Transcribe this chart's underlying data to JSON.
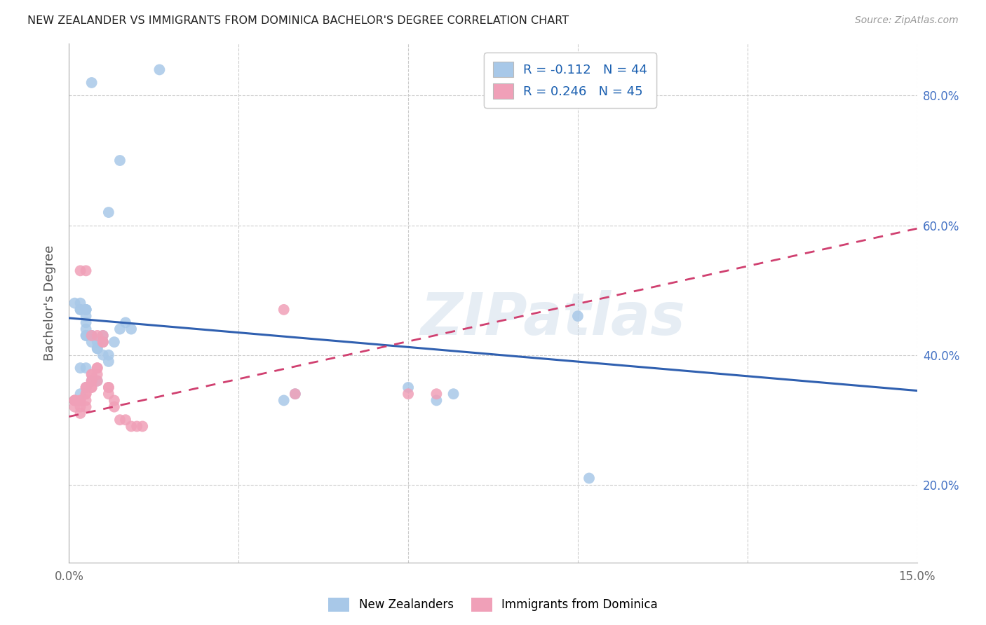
{
  "title": "NEW ZEALANDER VS IMMIGRANTS FROM DOMINICA BACHELOR'S DEGREE CORRELATION CHART",
  "source": "Source: ZipAtlas.com",
  "ylabel": "Bachelor's Degree",
  "xlim": [
    0.0,
    0.15
  ],
  "ylim": [
    0.08,
    0.88
  ],
  "xtick_positions": [
    0.0,
    0.03,
    0.06,
    0.09,
    0.12,
    0.15
  ],
  "xtick_labels": [
    "0.0%",
    "",
    "",
    "",
    "",
    "15.0%"
  ],
  "ytick_positions": [
    0.2,
    0.4,
    0.6,
    0.8
  ],
  "ytick_labels": [
    "20.0%",
    "40.0%",
    "60.0%",
    "80.0%"
  ],
  "legend_label1": "New Zealanders",
  "legend_label2": "Immigrants from Dominica",
  "legend_r1": "R = -0.112   N = 44",
  "legend_r2": "R = 0.246   N = 45",
  "blue_scatter_color": "#a8c8e8",
  "pink_scatter_color": "#f0a0b8",
  "blue_line_color": "#3060b0",
  "pink_line_color": "#d04070",
  "watermark": "ZIPatlas",
  "blue_x": [
    0.004,
    0.009,
    0.007,
    0.016,
    0.001,
    0.002,
    0.002,
    0.002,
    0.003,
    0.003,
    0.003,
    0.003,
    0.003,
    0.003,
    0.003,
    0.003,
    0.004,
    0.004,
    0.004,
    0.005,
    0.005,
    0.005,
    0.006,
    0.006,
    0.006,
    0.007,
    0.007,
    0.008,
    0.009,
    0.01,
    0.011,
    0.038,
    0.04,
    0.06,
    0.065,
    0.068,
    0.09,
    0.092,
    0.003,
    0.002,
    0.004,
    0.005,
    0.003,
    0.002
  ],
  "blue_y": [
    0.82,
    0.7,
    0.62,
    0.84,
    0.48,
    0.48,
    0.47,
    0.47,
    0.47,
    0.47,
    0.47,
    0.46,
    0.45,
    0.44,
    0.43,
    0.43,
    0.43,
    0.43,
    0.42,
    0.42,
    0.41,
    0.41,
    0.43,
    0.42,
    0.4,
    0.4,
    0.39,
    0.42,
    0.44,
    0.45,
    0.44,
    0.33,
    0.34,
    0.35,
    0.33,
    0.34,
    0.46,
    0.21,
    0.38,
    0.38,
    0.36,
    0.36,
    0.35,
    0.34
  ],
  "pink_x": [
    0.001,
    0.001,
    0.001,
    0.001,
    0.002,
    0.002,
    0.002,
    0.002,
    0.003,
    0.003,
    0.003,
    0.003,
    0.003,
    0.003,
    0.004,
    0.004,
    0.004,
    0.004,
    0.004,
    0.004,
    0.005,
    0.005,
    0.005,
    0.005,
    0.006,
    0.006,
    0.006,
    0.007,
    0.007,
    0.007,
    0.008,
    0.008,
    0.009,
    0.01,
    0.011,
    0.012,
    0.013,
    0.038,
    0.04,
    0.06,
    0.065,
    0.002,
    0.003,
    0.004,
    0.005
  ],
  "pink_y": [
    0.33,
    0.33,
    0.33,
    0.32,
    0.33,
    0.33,
    0.32,
    0.31,
    0.35,
    0.35,
    0.34,
    0.34,
    0.33,
    0.32,
    0.37,
    0.37,
    0.36,
    0.36,
    0.35,
    0.35,
    0.38,
    0.38,
    0.37,
    0.36,
    0.43,
    0.42,
    0.42,
    0.35,
    0.35,
    0.34,
    0.33,
    0.32,
    0.3,
    0.3,
    0.29,
    0.29,
    0.29,
    0.47,
    0.34,
    0.34,
    0.34,
    0.53,
    0.53,
    0.43,
    0.43
  ],
  "blue_trend_x": [
    0.0,
    0.15
  ],
  "blue_trend_y": [
    0.457,
    0.345
  ],
  "pink_trend_x": [
    0.0,
    0.15
  ],
  "pink_trend_y": [
    0.305,
    0.595
  ]
}
